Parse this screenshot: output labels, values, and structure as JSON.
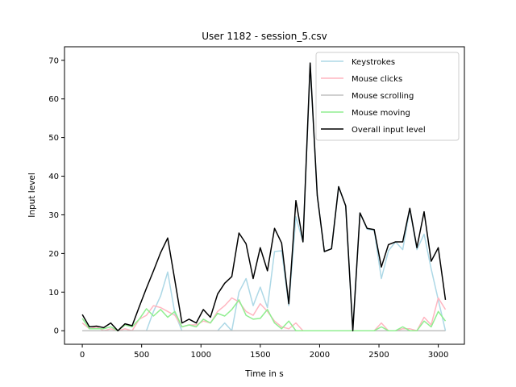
{
  "chart_data": {
    "type": "line",
    "title": "User 1182 - session_5.csv",
    "xlabel": "Time in s",
    "ylabel": "Input level",
    "xlim": [
      -150,
      3220
    ],
    "ylim": [
      -3.5,
      73.5
    ],
    "xticks": [
      0,
      500,
      1000,
      1500,
      2000,
      2500,
      3000
    ],
    "yticks": [
      0,
      10,
      20,
      30,
      40,
      50,
      60,
      70
    ],
    "grid": false,
    "legend_position": "top-right",
    "x": [
      0,
      60,
      120,
      180,
      240,
      300,
      360,
      420,
      480,
      540,
      600,
      660,
      720,
      780,
      840,
      900,
      960,
      1020,
      1080,
      1140,
      1200,
      1260,
      1320,
      1380,
      1440,
      1500,
      1560,
      1620,
      1680,
      1740,
      1800,
      1860,
      1920,
      1980,
      2040,
      2100,
      2160,
      2220,
      2280,
      2340,
      2400,
      2460,
      2520,
      2580,
      2640,
      2700,
      2760,
      2820,
      2880,
      2940,
      3000,
      3060
    ],
    "series": [
      {
        "name": "Keystrokes",
        "color": "#add8e6",
        "values": [
          0,
          0,
          0,
          0,
          0,
          0,
          0,
          0,
          0,
          0,
          5,
          9,
          15.2,
          4.5,
          0,
          0,
          0,
          0,
          0,
          0,
          2,
          0,
          10,
          13.5,
          6.5,
          11.3,
          6,
          20.5,
          20.7,
          6.5,
          29.5,
          23,
          69,
          35,
          20.5,
          21.2,
          37.3,
          32.3,
          0,
          30.5,
          26.3,
          26,
          13.5,
          20.7,
          23,
          21,
          31.5,
          21,
          25,
          16,
          8,
          0
        ]
      },
      {
        "name": "Mouse clicks",
        "color": "#ffb6c1",
        "values": [
          2,
          0.5,
          1,
          0,
          0.5,
          0,
          0.5,
          0,
          3,
          4,
          6.5,
          6,
          5,
          4,
          1,
          1.5,
          1.5,
          2.5,
          2,
          5,
          6.5,
          8.5,
          7.5,
          5,
          4,
          7,
          5,
          2.5,
          1,
          0.5,
          2,
          0,
          0,
          0,
          0,
          0,
          0,
          0,
          0,
          0,
          0,
          0,
          2,
          0,
          0,
          0.5,
          0.5,
          0,
          3.5,
          1.5,
          8.5,
          5.5
        ]
      },
      {
        "name": "Mouse scrolling",
        "color": "#c0c0c0",
        "values": [
          0,
          0,
          0,
          0,
          0,
          0,
          0,
          0,
          0,
          0,
          0,
          0,
          0,
          0,
          0,
          0,
          0,
          0,
          0,
          0,
          0,
          0,
          0,
          0,
          0,
          0,
          0,
          0,
          0,
          0,
          0,
          0,
          0,
          0,
          0,
          0,
          0,
          0,
          0,
          0,
          0,
          0,
          0,
          0,
          0,
          0,
          0,
          0,
          0,
          0,
          0,
          0
        ]
      },
      {
        "name": "Mouse moving",
        "color": "#90ee90",
        "values": [
          3.2,
          0.5,
          0.5,
          0.5,
          1,
          0,
          1.5,
          1,
          3,
          5.7,
          3.8,
          5.5,
          3.5,
          5,
          1,
          1.5,
          1,
          3,
          2,
          4.5,
          3.8,
          5.5,
          8,
          4,
          3,
          3.2,
          5.5,
          2,
          0.5,
          2.5,
          0,
          0,
          0,
          0,
          0,
          0,
          0,
          0,
          0,
          0,
          0,
          0,
          1,
          0,
          0,
          1,
          0,
          0,
          2.5,
          1,
          5,
          2.5
        ]
      },
      {
        "name": "Overall input level",
        "color": "#000000",
        "values": [
          4.2,
          1,
          1.2,
          0.8,
          2,
          0,
          1.8,
          1.3,
          6.2,
          11,
          15.5,
          20.2,
          24,
          13,
          2,
          3,
          2,
          5.5,
          3.5,
          9.5,
          12.3,
          14,
          25.3,
          22.5,
          13.5,
          21.5,
          15.5,
          26.5,
          22.7,
          7,
          33.7,
          23,
          69.3,
          35,
          20.5,
          21.2,
          37.3,
          32.3,
          0,
          30.5,
          26.5,
          26.2,
          16.5,
          22.3,
          23,
          23,
          31.7,
          21.5,
          30.8,
          18,
          21.5,
          8
        ]
      }
    ]
  }
}
